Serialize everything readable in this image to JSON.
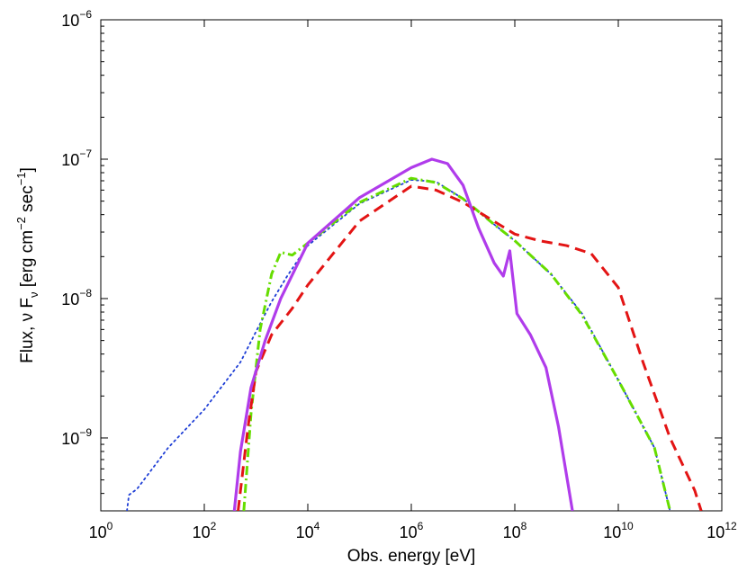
{
  "chart_data": {
    "type": "line",
    "title": "",
    "xlabel": "Obs. energy [eV]",
    "ylabel": "Flux, ν F_ν [erg cm^-2 sec^-1]",
    "ylabel_parts": {
      "prefix": "Flux, ν F",
      "sub": "ν",
      "mid1": " [erg cm",
      "sup1": "−2",
      "mid2": " sec",
      "sup2": "−1",
      "end": "]"
    },
    "x_scale": "log",
    "y_scale": "log",
    "xlim": [
      1,
      1000000000000.0
    ],
    "ylim": [
      3e-10,
      1e-06
    ],
    "x_ticks": [
      {
        "base": "10",
        "exp": "0",
        "value": 1
      },
      {
        "base": "10",
        "exp": "2",
        "value": 100
      },
      {
        "base": "10",
        "exp": "4",
        "value": 10000
      },
      {
        "base": "10",
        "exp": "6",
        "value": 1000000
      },
      {
        "base": "10",
        "exp": "8",
        "value": 100000000
      },
      {
        "base": "10",
        "exp": "10",
        "value": 10000000000
      },
      {
        "base": "10",
        "exp": "12",
        "value": 1000000000000
      }
    ],
    "y_ticks": [
      {
        "base": "10",
        "exp": "−9",
        "value": 1e-09
      },
      {
        "base": "10",
        "exp": "−8",
        "value": 1e-08
      },
      {
        "base": "10",
        "exp": "−7",
        "value": 1e-07
      },
      {
        "base": "10",
        "exp": "−6",
        "value": 1e-06
      }
    ],
    "legend": "none",
    "series": [
      {
        "name": "dotted",
        "color": "#1f3fd6",
        "style": "dotted",
        "points": [
          [
            3.2,
            3e-10
          ],
          [
            3.5,
            3.9e-10
          ],
          [
            5,
            4.3e-10
          ],
          [
            20,
            8.5e-10
          ],
          [
            100,
            1.6e-09
          ],
          [
            500,
            3.5e-09
          ],
          [
            1000,
            5.8e-09
          ],
          [
            2000,
            9.5e-09
          ],
          [
            4000,
            1.45e-08
          ],
          [
            10000,
            2.4e-08
          ],
          [
            100000,
            4.8e-08
          ],
          [
            1000000,
            7.1e-08
          ],
          [
            3000000,
            6.9e-08
          ],
          [
            10000000,
            5.2e-08
          ],
          [
            40000000,
            3.4e-08
          ],
          [
            100000000,
            2.6e-08
          ],
          [
            500000000,
            1.5e-08
          ],
          [
            2000000000,
            7.8e-09
          ],
          [
            10000000000,
            2.6e-09
          ],
          [
            50000000000,
            8.5e-10
          ],
          [
            100000000000,
            3e-10
          ]
        ]
      },
      {
        "name": "dash-dot",
        "color": "#66dd00",
        "style": "dashdot",
        "points": [
          [
            580,
            3e-10
          ],
          [
            800,
            1.5e-09
          ],
          [
            1200,
            6e-09
          ],
          [
            2000,
            1.5e-08
          ],
          [
            3000,
            2.15e-08
          ],
          [
            5000,
            2.05e-08
          ],
          [
            10000,
            2.5e-08
          ],
          [
            100000,
            4.9e-08
          ],
          [
            1000000,
            7.3e-08
          ],
          [
            3000000,
            6.8e-08
          ],
          [
            10000000,
            5.2e-08
          ],
          [
            40000000,
            3.4e-08
          ],
          [
            100000000,
            2.6e-08
          ],
          [
            500000000,
            1.5e-08
          ],
          [
            2000000000,
            7.6e-09
          ],
          [
            10000000000,
            2.6e-09
          ],
          [
            50000000000,
            8.5e-10
          ],
          [
            100000000000,
            3e-10
          ]
        ]
      },
      {
        "name": "dashed",
        "color": "#e31414",
        "style": "dashed",
        "points": [
          [
            450,
            3e-10
          ],
          [
            700,
            1.2e-09
          ],
          [
            1000,
            3e-09
          ],
          [
            2000,
            5.5e-09
          ],
          [
            5000,
            8.5e-09
          ],
          [
            10000,
            1.25e-08
          ],
          [
            100000,
            3.6e-08
          ],
          [
            1000000,
            6.4e-08
          ],
          [
            3000000,
            6e-08
          ],
          [
            10000000,
            4.9e-08
          ],
          [
            50000000,
            3.4e-08
          ],
          [
            100000000,
            2.9e-08
          ],
          [
            300000000,
            2.6e-08
          ],
          [
            1000000000,
            2.4e-08
          ],
          [
            3000000000,
            2.1e-08
          ],
          [
            10000000000,
            1.2e-08
          ],
          [
            30000000000,
            3.5e-09
          ],
          [
            100000000000,
            1e-09
          ],
          [
            300000000000,
            4.2e-10
          ],
          [
            400000000000,
            3e-10
          ]
        ]
      },
      {
        "name": "solid",
        "color": "#b03ceb",
        "style": "solid",
        "points": [
          [
            380,
            3e-10
          ],
          [
            500,
            8e-10
          ],
          [
            800,
            2.3e-09
          ],
          [
            1500,
            5e-09
          ],
          [
            3000,
            1e-08
          ],
          [
            10000,
            2.5e-08
          ],
          [
            100000,
            5.3e-08
          ],
          [
            1000000,
            8.7e-08
          ],
          [
            2500000,
            1e-07
          ],
          [
            5000000,
            9.3e-08
          ],
          [
            10000000,
            6.5e-08
          ],
          [
            20000000,
            3.2e-08
          ],
          [
            40000000,
            1.8e-08
          ],
          [
            60000000,
            1.45e-08
          ],
          [
            80000000,
            2.2e-08
          ],
          [
            110000000,
            7.8e-09
          ],
          [
            200000000,
            5.5e-09
          ],
          [
            400000000,
            3.2e-09
          ],
          [
            700000000,
            1.2e-09
          ],
          [
            1300000000,
            3e-10
          ]
        ]
      }
    ]
  }
}
